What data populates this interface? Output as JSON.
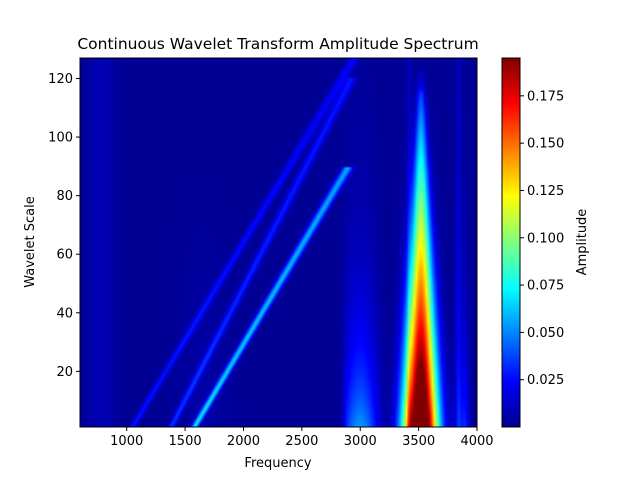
{
  "chart_data": {
    "type": "heatmap",
    "title": "Continuous Wavelet Transform Amplitude Spectrum",
    "xlabel": "Frequency",
    "ylabel": "Wavelet Scale",
    "xlim": [
      600,
      4000
    ],
    "ylim": [
      1,
      127
    ],
    "x_ticks": [
      "1000",
      "1500",
      "2000",
      "2500",
      "3000",
      "3500",
      "4000"
    ],
    "y_ticks": [
      "20",
      "40",
      "60",
      "80",
      "100",
      "120"
    ],
    "colorbar": {
      "label": "Amplitude",
      "colormap": "jet",
      "range": [
        0.0,
        0.195
      ],
      "ticks": [
        "0.025",
        "0.050",
        "0.075",
        "0.100",
        "0.125",
        "0.150",
        "0.175"
      ]
    },
    "features": [
      {
        "kind": "ridge",
        "freq_center": 3520,
        "scale_range": [
          1,
          115
        ],
        "peak_amplitude": 0.195
      },
      {
        "kind": "diagonal",
        "freq_start": 1580,
        "scale_start": 1,
        "freq_end": 2870,
        "scale_end": 88,
        "amplitude": 0.065
      },
      {
        "kind": "diagonal",
        "freq_start": 1380,
        "scale_start": 1,
        "freq_end": 2900,
        "scale_end": 118,
        "amplitude": 0.03
      },
      {
        "kind": "diagonal",
        "freq_start": 1050,
        "scale_start": 1,
        "freq_end": 2950,
        "scale_end": 127,
        "amplitude": 0.025
      },
      {
        "kind": "band",
        "freq_range": [
          2820,
          3950
        ],
        "scale_range": [
          1,
          60
        ],
        "amplitude": 0.05
      }
    ]
  }
}
